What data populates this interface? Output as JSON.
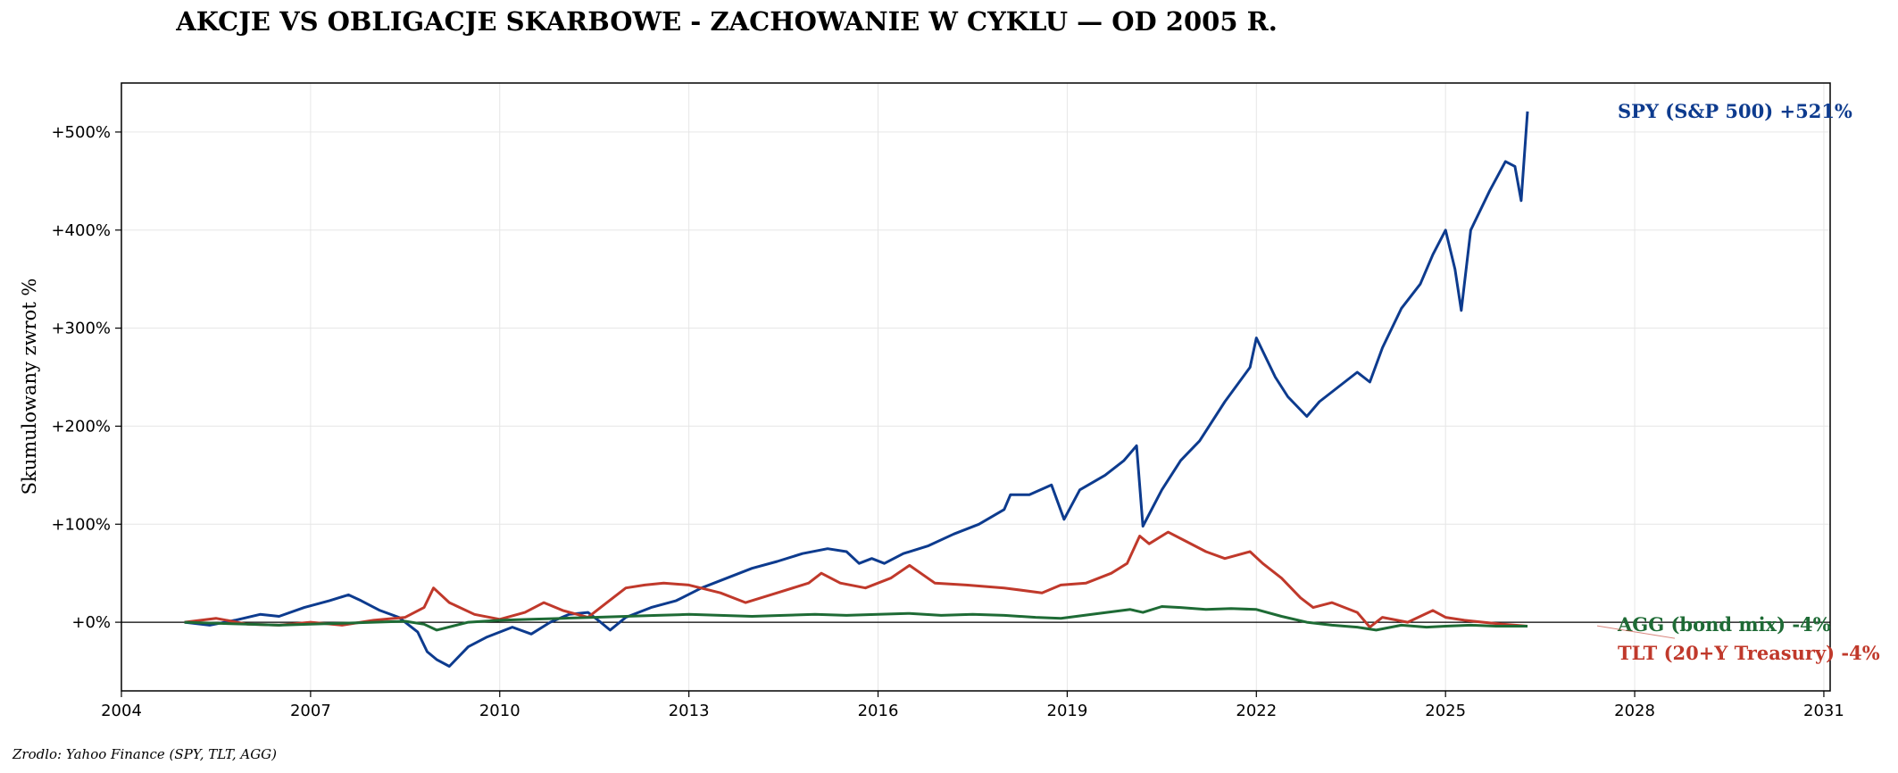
{
  "chart_data": {
    "type": "line",
    "title": "AKCJE VS OBLIGACJE SKARBOWE - ZACHOWANIE W CYKLU — OD 2005 R.",
    "ylabel": "Skumulowany zwrot %",
    "source": "Zrodlo: Yahoo Finance (SPY, TLT, AGG)",
    "xlim": [
      2004,
      2031.1
    ],
    "ylim": [
      -70,
      550
    ],
    "x_ticks": [
      2004,
      2007,
      2010,
      2013,
      2016,
      2019,
      2022,
      2025,
      2028,
      2031
    ],
    "x_tick_labels": [
      "2004",
      "2007",
      "2010",
      "2013",
      "2016",
      "2019",
      "2022",
      "2025",
      "2028",
      "2031"
    ],
    "y_ticks": [
      0,
      100,
      200,
      300,
      400,
      500
    ],
    "y_tick_labels": [
      "+0%",
      "+100%",
      "+200%",
      "+300%",
      "+400%",
      "+500%"
    ],
    "grid": true,
    "baseline": 0,
    "series": [
      {
        "name": "SPY (S&P 500)",
        "label": "SPY (S&P 500)  +521%",
        "color": "#0d3b8e",
        "x": [
          2005.0,
          2005.4,
          2005.8,
          2006.2,
          2006.5,
          2006.9,
          2007.3,
          2007.6,
          2007.8,
          2008.1,
          2008.4,
          2008.7,
          2008.85,
          2009.0,
          2009.2,
          2009.5,
          2009.8,
          2010.2,
          2010.5,
          2010.8,
          2011.1,
          2011.4,
          2011.6,
          2011.75,
          2012.0,
          2012.4,
          2012.8,
          2013.2,
          2013.6,
          2014.0,
          2014.4,
          2014.8,
          2015.2,
          2015.5,
          2015.7,
          2015.9,
          2016.1,
          2016.4,
          2016.8,
          2017.2,
          2017.6,
          2018.0,
          2018.1,
          2018.4,
          2018.75,
          2018.95,
          2019.2,
          2019.6,
          2019.9,
          2020.1,
          2020.2,
          2020.5,
          2020.8,
          2021.1,
          2021.5,
          2021.9,
          2022.0,
          2022.3,
          2022.5,
          2022.8,
          2023.0,
          2023.3,
          2023.6,
          2023.8,
          2024.0,
          2024.3,
          2024.6,
          2024.8,
          2025.0,
          2025.15,
          2025.25,
          2025.4,
          2025.7,
          2025.95,
          2026.1,
          2026.2,
          2026.3
        ],
        "y": [
          0,
          -3,
          2,
          8,
          6,
          15,
          22,
          28,
          22,
          12,
          5,
          -10,
          -30,
          -38,
          -45,
          -25,
          -15,
          -5,
          -12,
          0,
          8,
          10,
          0,
          -8,
          5,
          15,
          22,
          35,
          45,
          55,
          62,
          70,
          75,
          72,
          60,
          65,
          60,
          70,
          78,
          90,
          100,
          115,
          130,
          130,
          140,
          105,
          135,
          150,
          165,
          180,
          98,
          135,
          165,
          185,
          225,
          260,
          290,
          250,
          230,
          210,
          225,
          240,
          255,
          245,
          280,
          320,
          345,
          375,
          400,
          360,
          318,
          400,
          440,
          470,
          465,
          430,
          521
        ]
      },
      {
        "name": "TLT (20+Y Treasury)",
        "label": "TLT (20+Y Treasury)  -4%",
        "color": "#c0392b",
        "x": [
          2005.0,
          2005.5,
          2006.0,
          2006.5,
          2007.0,
          2007.5,
          2008.0,
          2008.5,
          2008.8,
          2008.95,
          2009.2,
          2009.6,
          2010.0,
          2010.4,
          2010.7,
          2011.0,
          2011.4,
          2011.7,
          2012.0,
          2012.3,
          2012.6,
          2013.0,
          2013.5,
          2013.9,
          2014.4,
          2014.9,
          2015.1,
          2015.4,
          2015.8,
          2016.2,
          2016.5,
          2016.9,
          2017.4,
          2018.0,
          2018.6,
          2018.9,
          2019.3,
          2019.7,
          2019.95,
          2020.15,
          2020.3,
          2020.6,
          2020.9,
          2021.2,
          2021.5,
          2021.9,
          2022.1,
          2022.4,
          2022.7,
          2022.9,
          2023.2,
          2023.6,
          2023.8,
          2024.0,
          2024.4,
          2024.8,
          2025.0,
          2025.3,
          2025.6,
          2025.9,
          2026.1,
          2026.3
        ],
        "y": [
          0,
          4,
          -2,
          -3,
          0,
          -3,
          2,
          5,
          15,
          35,
          20,
          8,
          3,
          10,
          20,
          12,
          5,
          20,
          35,
          38,
          40,
          38,
          30,
          20,
          30,
          40,
          50,
          40,
          35,
          45,
          58,
          40,
          38,
          35,
          30,
          38,
          40,
          50,
          60,
          88,
          80,
          92,
          82,
          72,
          65,
          72,
          60,
          45,
          25,
          15,
          20,
          10,
          -5,
          5,
          0,
          12,
          5,
          2,
          0,
          -2,
          -3,
          -4
        ]
      },
      {
        "name": "AGG (bond mix)",
        "label": "AGG (bond mix)  -4%",
        "color": "#1e6b35",
        "x": [
          2005.0,
          2005.5,
          2006.0,
          2006.5,
          2007.0,
          2007.5,
          2008.0,
          2008.5,
          2008.8,
          2009.0,
          2009.5,
          2010.0,
          2010.5,
          2011.0,
          2011.5,
          2012.0,
          2012.5,
          2013.0,
          2013.5,
          2014.0,
          2014.5,
          2015.0,
          2015.5,
          2016.0,
          2016.5,
          2017.0,
          2017.5,
          2018.0,
          2018.5,
          2018.9,
          2019.5,
          2020.0,
          2020.2,
          2020.5,
          2020.8,
          2021.2,
          2021.6,
          2022.0,
          2022.4,
          2022.8,
          2023.2,
          2023.6,
          2023.9,
          2024.3,
          2024.7,
          2025.0,
          2025.4,
          2025.8,
          2026.3
        ],
        "y": [
          0,
          -1,
          -2,
          -3,
          -2,
          -1,
          0,
          1,
          -2,
          -8,
          0,
          2,
          3,
          4,
          5,
          6,
          7,
          8,
          7,
          6,
          7,
          8,
          7,
          8,
          9,
          7,
          8,
          7,
          5,
          4,
          9,
          13,
          10,
          16,
          15,
          13,
          14,
          13,
          6,
          0,
          -3,
          -5,
          -8,
          -3,
          -5,
          -4,
          -3,
          -4,
          -4
        ]
      }
    ]
  }
}
